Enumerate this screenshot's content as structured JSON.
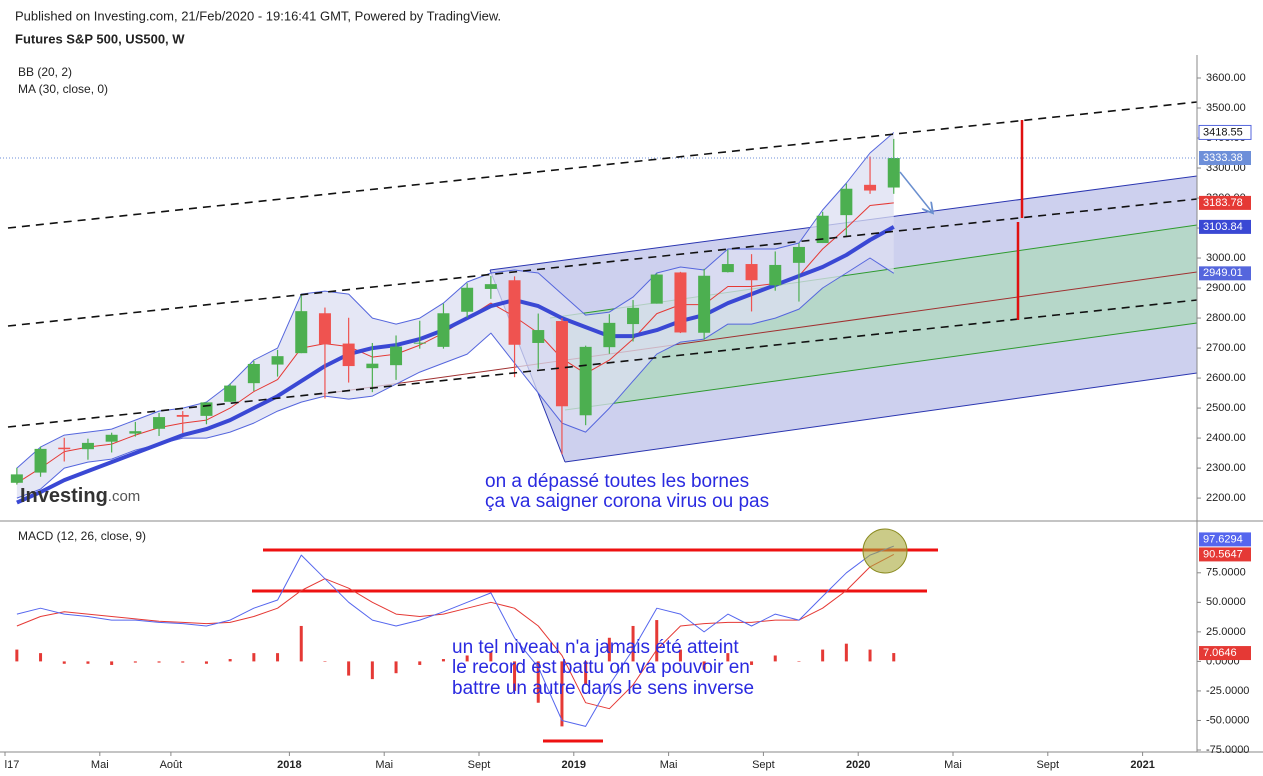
{
  "header": {
    "published": "Published on Investing.com, 21/Feb/2020 - 19:16:41 GMT, Powered by TradingView.",
    "symbol": "Futures S&P 500, US500, W"
  },
  "logo": {
    "brand": "Investing",
    "suffix": ".com"
  },
  "annotations": {
    "main": [
      "on a dépassé toutes les bornes",
      "ça va saigner corona virus ou pas"
    ],
    "macd": [
      "un tel niveau n'a jamais été atteint",
      "le record est battu on va pouvoir en",
      "battre un autre dans le sens inverse"
    ]
  },
  "chart_data": [
    {
      "type": "candlestick",
      "legend": [
        "BB (20, 2)",
        "MA (30, close, 0)"
      ],
      "x": [
        "2017-01",
        "2017-02",
        "2017-03",
        "2017-04",
        "2017-05",
        "2017-06",
        "2017-07",
        "2017-08",
        "2017-09",
        "2017-10",
        "2017-11",
        "2017-12",
        "2018-01",
        "2018-02",
        "2018-03",
        "2018-04",
        "2018-05",
        "2018-06",
        "2018-07",
        "2018-08",
        "2018-09",
        "2018-10",
        "2018-11",
        "2018-12",
        "2019-01",
        "2019-02",
        "2019-03",
        "2019-04",
        "2019-05",
        "2019-06",
        "2019-07",
        "2019-08",
        "2019-09",
        "2019-10",
        "2019-11",
        "2019-12",
        "2020-01",
        "2020-02"
      ],
      "open": [
        2251,
        2285,
        2368,
        2363,
        2388,
        2415,
        2431,
        2477,
        2474,
        2521,
        2583,
        2645,
        2683,
        2816,
        2715,
        2633,
        2643,
        2718,
        2704,
        2821,
        2897,
        2926,
        2717,
        2790,
        2476,
        2703,
        2780,
        2848,
        2952,
        2751,
        2953,
        2980,
        2909,
        2984,
        3050,
        3143,
        3244,
        3235
      ],
      "high": [
        2301,
        2372,
        2401,
        2398,
        2418,
        2454,
        2484,
        2490,
        2519,
        2582,
        2657,
        2694,
        2878,
        2835,
        2801,
        2717,
        2742,
        2791,
        2848,
        2916,
        2940,
        2939,
        2815,
        2800,
        2708,
        2813,
        2860,
        2949,
        2954,
        2964,
        3028,
        3013,
        3022,
        3050,
        3154,
        3248,
        3338,
        3397
      ],
      "low": [
        2245,
        2271,
        2322,
        2328,
        2352,
        2405,
        2407,
        2417,
        2446,
        2520,
        2557,
        2605,
        2683,
        2532,
        2585,
        2553,
        2594,
        2698,
        2698,
        2802,
        2864,
        2603,
        2631,
        2346,
        2443,
        2681,
        2722,
        2848,
        2750,
        2728,
        2952,
        2822,
        2891,
        2855,
        3050,
        3070,
        3214,
        3214
      ],
      "close": [
        2279,
        2364,
        2363,
        2384,
        2411,
        2423,
        2470,
        2471,
        2519,
        2575,
        2647,
        2673,
        2823,
        2713,
        2640,
        2648,
        2705,
        2718,
        2816,
        2901,
        2913,
        2711,
        2760,
        2506,
        2704,
        2784,
        2834,
        2945,
        2752,
        2941,
        2980,
        2926,
        2977,
        3037,
        3141,
        3231,
        3225,
        3333.38
      ],
      "up_color": "#4caf50",
      "down_color": "#ef5350",
      "last_color": "#6d8fd9",
      "bb": {
        "color": "#5566dd",
        "fill": "#dcdff2",
        "basis_color": "#e53935",
        "upper": [
          2300,
          2370,
          2410,
          2420,
          2430,
          2460,
          2490,
          2500,
          2520,
          2580,
          2660,
          2700,
          2880,
          2890,
          2880,
          2800,
          2780,
          2800,
          2850,
          2920,
          2950,
          2960,
          2950,
          2880,
          2810,
          2820,
          2870,
          2950,
          2970,
          2960,
          3030,
          3030,
          3030,
          3050,
          3160,
          3250,
          3350,
          3418.55
        ],
        "basis": [
          2250,
          2300,
          2355,
          2370,
          2380,
          2410,
          2435,
          2450,
          2460,
          2500,
          2555,
          2595,
          2700,
          2715,
          2705,
          2670,
          2680,
          2710,
          2750,
          2800,
          2850,
          2805,
          2750,
          2665,
          2615,
          2660,
          2730,
          2815,
          2845,
          2845,
          2905,
          2905,
          2915,
          2940,
          3030,
          3100,
          3175,
          3183.78
        ],
        "lower": [
          2200,
          2230,
          2300,
          2320,
          2330,
          2360,
          2380,
          2400,
          2400,
          2420,
          2450,
          2490,
          2520,
          2540,
          2530,
          2540,
          2580,
          2620,
          2650,
          2680,
          2750,
          2650,
          2550,
          2450,
          2420,
          2500,
          2590,
          2680,
          2720,
          2730,
          2780,
          2780,
          2800,
          2830,
          2900,
          2950,
          3000,
          2949.01
        ]
      },
      "ma": {
        "color": "#3a48d4",
        "values": [
          2185,
          2220,
          2260,
          2290,
          2320,
          2350,
          2380,
          2410,
          2430,
          2460,
          2500,
          2540,
          2590,
          2640,
          2680,
          2700,
          2710,
          2730,
          2760,
          2800,
          2840,
          2860,
          2840,
          2800,
          2770,
          2740,
          2740,
          2760,
          2790,
          2810,
          2850,
          2880,
          2910,
          2940,
          2970,
          3010,
          3060,
          3103.84
        ]
      },
      "ylim": [
        2127,
        3660
      ],
      "grid": false,
      "yticks": [
        {
          "value": 2200,
          "label": "2200.00"
        },
        {
          "value": 2300,
          "label": "2300.00"
        },
        {
          "value": 2400,
          "label": "2400.00"
        },
        {
          "value": 2500,
          "label": "2500.00"
        },
        {
          "value": 2600,
          "label": "2600.00"
        },
        {
          "value": 2700,
          "label": "2700.00"
        },
        {
          "value": 2800,
          "label": "2800.00"
        },
        {
          "value": 2900,
          "label": "2900.00"
        },
        {
          "value": 3000,
          "label": "3000.00"
        },
        {
          "value": 3100,
          "label": "3100.00"
        },
        {
          "value": 3200,
          "label": "3200.00"
        },
        {
          "value": 3300,
          "label": "3300.00"
        },
        {
          "value": 3400,
          "label": "3400.00"
        },
        {
          "value": 3500,
          "label": "3500.00"
        },
        {
          "value": 3600,
          "label": "3600.00"
        }
      ],
      "xticks": [
        {
          "value": "2017-01",
          "label": "l17"
        },
        {
          "value": "2017-05",
          "label": "Mai"
        },
        {
          "value": "2017-08",
          "label": "Août"
        },
        {
          "value": "2018-01",
          "label": "2018"
        },
        {
          "value": "2018-05",
          "label": "Mai"
        },
        {
          "value": "2018-09",
          "label": "Sept"
        },
        {
          "value": "2019-01",
          "label": "2019"
        },
        {
          "value": "2019-05",
          "label": "Mai"
        },
        {
          "value": "2019-09",
          "label": "Sept"
        },
        {
          "value": "2020-01",
          "label": "2020"
        },
        {
          "value": "2020-05",
          "label": "Mai"
        },
        {
          "value": "2020-09",
          "label": "Sept"
        },
        {
          "value": "2021-01",
          "label": "2021"
        }
      ]
    },
    {
      "type": "macd",
      "title": "MACD (12, 26, close, 9)",
      "macd": {
        "color": "#5566ee",
        "values": [
          40,
          45,
          40,
          38,
          35,
          35,
          33,
          32,
          30,
          35,
          45,
          52,
          90,
          70,
          50,
          35,
          30,
          35,
          42,
          50,
          58,
          20,
          -5,
          -50,
          -55,
          -20,
          10,
          45,
          40,
          25,
          40,
          30,
          40,
          35,
          55,
          75,
          90,
          97.6294
        ]
      },
      "signal": {
        "color": "#e53935",
        "values": [
          30,
          38,
          42,
          40,
          38,
          36,
          34,
          33,
          32,
          33,
          38,
          45,
          60,
          70,
          62,
          50,
          40,
          38,
          40,
          45,
          50,
          45,
          30,
          5,
          -35,
          -40,
          -20,
          10,
          30,
          32,
          33,
          33,
          35,
          35,
          45,
          60,
          80,
          90.5647
        ]
      },
      "histogram": {
        "color": "#e53935",
        "values": [
          10,
          7,
          -2,
          -2,
          -3,
          -1,
          -1,
          -1,
          -2,
          2,
          7,
          7,
          30,
          0,
          -12,
          -15,
          -10,
          -3,
          2,
          5,
          8,
          -25,
          -35,
          -55,
          -20,
          20,
          30,
          35,
          10,
          -7,
          7,
          -3,
          5,
          0,
          10,
          15,
          10,
          7.0646
        ]
      },
      "ylim": [
        -75,
        118
      ],
      "yticks": [
        {
          "value": -75,
          "label": "-75.0000"
        },
        {
          "value": -50,
          "label": "-50.0000"
        },
        {
          "value": -25,
          "label": "-25.0000"
        },
        {
          "value": 0,
          "label": "0.0000"
        },
        {
          "value": 25,
          "label": "25.0000"
        },
        {
          "value": 50,
          "label": "50.0000"
        },
        {
          "value": 75,
          "label": "75.0000"
        }
      ]
    }
  ]
}
